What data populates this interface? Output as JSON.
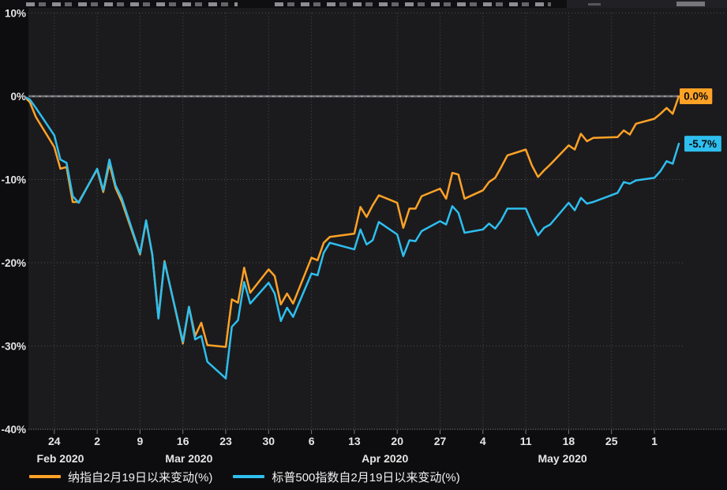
{
  "colors": {
    "background": "#0d0d0f",
    "plot_bg": "#1b1b1e",
    "grid_dotted": "#4c4c50",
    "frame_dotted": "#75757a",
    "zero_line": "#949498",
    "axis_text": "#e6e6e6",
    "nasdaq_orange": "#ffa226",
    "sp500_cyan": "#2ebfef",
    "end_label_text": "#0b0b0d"
  },
  "chart_data": {
    "type": "line",
    "title": "",
    "x_unit": "trading dates Feb 19 - Jun 5, 2020 (weekend gaps on calendar axis)",
    "y_unit": "% change since 2020-02-19",
    "ylim": [
      -40,
      10
    ],
    "grid": "dotted weekly verticals, dotted 10% horizontals, solid 0% line",
    "legend_position": "bottom",
    "y_ticks": [
      10,
      0,
      -10,
      -20,
      -30,
      -40
    ],
    "x_week_ticks": [
      {
        "date": "2/24",
        "label": "24"
      },
      {
        "date": "3/2",
        "label": "2"
      },
      {
        "date": "3/9",
        "label": "9"
      },
      {
        "date": "3/16",
        "label": "16"
      },
      {
        "date": "3/23",
        "label": "23"
      },
      {
        "date": "3/30",
        "label": "30"
      },
      {
        "date": "4/6",
        "label": "6"
      },
      {
        "date": "4/13",
        "label": "13"
      },
      {
        "date": "4/20",
        "label": "20"
      },
      {
        "date": "4/27",
        "label": "27"
      },
      {
        "date": "5/4",
        "label": "4"
      },
      {
        "date": "5/11",
        "label": "11"
      },
      {
        "date": "5/18",
        "label": "18"
      },
      {
        "date": "5/25",
        "label": "25"
      },
      {
        "date": "6/1",
        "label": "1"
      }
    ],
    "x_month_labels": [
      {
        "label": "Feb 2020",
        "anchor_date": "2/25"
      },
      {
        "label": "Mar 2020",
        "anchor_date": "3/17"
      },
      {
        "label": "Apr 2020",
        "anchor_date": "4/18"
      },
      {
        "label": "May 2020",
        "anchor_date": "5/17"
      }
    ],
    "dates": [
      "2/19",
      "2/20",
      "2/21",
      "2/24",
      "2/25",
      "2/26",
      "2/27",
      "2/28",
      "3/2",
      "3/3",
      "3/4",
      "3/5",
      "3/6",
      "3/9",
      "3/10",
      "3/11",
      "3/12",
      "3/13",
      "3/16",
      "3/17",
      "3/18",
      "3/19",
      "3/20",
      "3/23",
      "3/24",
      "3/25",
      "3/26",
      "3/27",
      "3/30",
      "3/31",
      "4/1",
      "4/2",
      "4/3",
      "4/6",
      "4/7",
      "4/8",
      "4/9",
      "4/13",
      "4/14",
      "4/15",
      "4/16",
      "4/17",
      "4/20",
      "4/21",
      "4/22",
      "4/23",
      "4/24",
      "4/27",
      "4/28",
      "4/29",
      "4/30",
      "5/1",
      "5/4",
      "5/5",
      "5/6",
      "5/7",
      "5/8",
      "5/11",
      "5/12",
      "5/13",
      "5/14",
      "5/15",
      "5/18",
      "5/19",
      "5/20",
      "5/21",
      "5/22",
      "5/26",
      "5/27",
      "5/28",
      "5/29",
      "6/1",
      "6/2",
      "6/3",
      "6/4",
      "6/5"
    ],
    "series": [
      {
        "name": "纳指自2月19日以来变动(%)",
        "color": "#ffa226",
        "end_label": "0.0%",
        "values": [
          0.0,
          -0.7,
          -2.5,
          -6.1,
          -8.7,
          -8.5,
          -12.7,
          -12.7,
          -8.8,
          -11.5,
          -8.1,
          -11.0,
          -12.6,
          -19.0,
          -15.0,
          -19.0,
          -26.6,
          -19.8,
          -29.7,
          -25.3,
          -28.8,
          -27.2,
          -29.9,
          -30.1,
          -24.4,
          -24.8,
          -20.6,
          -23.6,
          -20.8,
          -21.6,
          -25.0,
          -23.7,
          -24.9,
          -19.4,
          -19.7,
          -17.6,
          -16.9,
          -16.5,
          -13.3,
          -14.5,
          -13.1,
          -11.9,
          -12.8,
          -15.8,
          -13.5,
          -13.5,
          -12.0,
          -11.1,
          -12.3,
          -9.2,
          -9.4,
          -12.3,
          -11.3,
          -10.3,
          -9.8,
          -8.5,
          -7.1,
          -6.4,
          -8.3,
          -9.7,
          -8.9,
          -8.2,
          -5.9,
          -6.4,
          -4.5,
          -5.4,
          -5.0,
          -4.9,
          -4.1,
          -4.6,
          -3.3,
          -2.7,
          -2.1,
          -1.4,
          -2.1,
          0.0
        ]
      },
      {
        "name": "标普500指数自2月19日以来变动(%)",
        "color": "#2ebfef",
        "end_label": "-5.7%",
        "values": [
          0.0,
          -0.4,
          -1.4,
          -4.7,
          -7.6,
          -8.0,
          -12.0,
          -12.8,
          -8.7,
          -11.3,
          -7.6,
          -10.7,
          -12.2,
          -18.9,
          -14.9,
          -19.0,
          -26.7,
          -19.9,
          -29.5,
          -25.3,
          -29.2,
          -28.8,
          -31.9,
          -33.9,
          -27.7,
          -26.9,
          -22.3,
          -24.9,
          -22.4,
          -23.7,
          -27.0,
          -25.4,
          -26.5,
          -21.3,
          -21.5,
          -18.8,
          -17.6,
          -18.4,
          -16.0,
          -17.8,
          -17.3,
          -15.1,
          -16.6,
          -19.2,
          -17.3,
          -17.4,
          -16.2,
          -15.0,
          -15.4,
          -13.2,
          -14.0,
          -16.4,
          -16.0,
          -15.3,
          -15.9,
          -14.9,
          -13.5,
          -13.5,
          -15.2,
          -16.7,
          -15.8,
          -15.4,
          -12.8,
          -13.7,
          -12.2,
          -12.9,
          -12.7,
          -11.6,
          -10.3,
          -10.5,
          -10.1,
          -9.8,
          -9.0,
          -7.8,
          -8.1,
          -5.7
        ]
      }
    ]
  },
  "legend": {
    "items": [
      {
        "label": "纳指自2月19日以来变动(%)"
      },
      {
        "label": "标普500指数自2月19日以来变动(%)"
      }
    ]
  }
}
